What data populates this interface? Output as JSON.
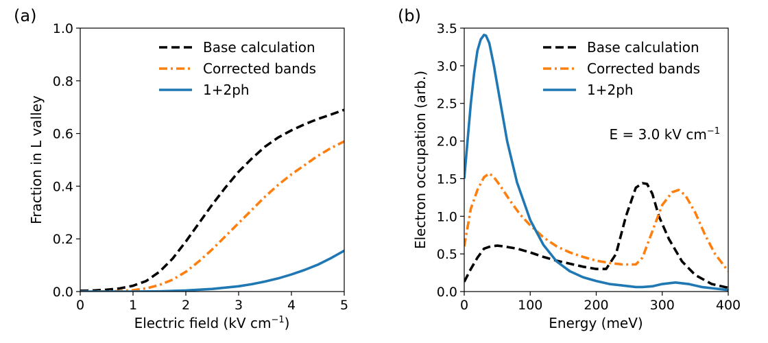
{
  "chart_data": [
    {
      "type": "line",
      "panel_label": "(a)",
      "xlabel": "Electric field (kV cm",
      "xlabel_sup": "−1",
      "xlabel_end": ")",
      "ylabel": "Fraction in L valley",
      "xlim": [
        0,
        5
      ],
      "ylim": [
        0,
        1.0
      ],
      "xticks": [
        0,
        1,
        2,
        3,
        4,
        5
      ],
      "xtick_labels": [
        "0",
        "1",
        "2",
        "3",
        "4",
        "5"
      ],
      "yticks": [
        0,
        0.2,
        0.4,
        0.6,
        0.8,
        1.0
      ],
      "ytick_labels": [
        "0.0",
        "0.2",
        "0.4",
        "0.6",
        "0.8",
        "1.0"
      ],
      "grid": false,
      "legend_position": "top-right",
      "series": [
        {
          "name": "Base calculation",
          "color": "#000000",
          "dash": "dashed",
          "x": [
            0,
            0.25,
            0.5,
            0.75,
            1.0,
            1.25,
            1.5,
            1.75,
            2.0,
            2.25,
            2.5,
            2.75,
            3.0,
            3.25,
            3.5,
            3.75,
            4.0,
            4.25,
            4.5,
            4.75,
            5.0
          ],
          "y": [
            0.003,
            0.004,
            0.007,
            0.012,
            0.022,
            0.04,
            0.075,
            0.125,
            0.19,
            0.26,
            0.33,
            0.395,
            0.455,
            0.505,
            0.55,
            0.585,
            0.612,
            0.635,
            0.655,
            0.672,
            0.69
          ]
        },
        {
          "name": "Corrected bands",
          "color": "#ff7f0e",
          "dash": "dashdot",
          "x": [
            0,
            0.25,
            0.5,
            0.75,
            1.0,
            1.25,
            1.5,
            1.75,
            2.0,
            2.25,
            2.5,
            2.75,
            3.0,
            3.25,
            3.5,
            3.75,
            4.0,
            4.25,
            4.5,
            4.75,
            5.0
          ],
          "y": [
            0.0,
            0.0,
            0.001,
            0.002,
            0.005,
            0.012,
            0.025,
            0.045,
            0.075,
            0.115,
            0.16,
            0.21,
            0.26,
            0.31,
            0.36,
            0.405,
            0.445,
            0.48,
            0.515,
            0.545,
            0.57
          ]
        },
        {
          "name": "1+2ph",
          "color": "#1f77b4",
          "dash": "solid",
          "x": [
            0,
            0.5,
            1.0,
            1.5,
            2.0,
            2.5,
            3.0,
            3.25,
            3.5,
            3.75,
            4.0,
            4.25,
            4.5,
            4.75,
            5.0
          ],
          "y": [
            0.0,
            0.0,
            0.0,
            0.001,
            0.004,
            0.01,
            0.02,
            0.028,
            0.038,
            0.05,
            0.065,
            0.082,
            0.102,
            0.127,
            0.155
          ]
        }
      ]
    },
    {
      "type": "line",
      "panel_label": "(b)",
      "xlabel": "Energy (meV)",
      "ylabel": "Electron occupation (arb.)",
      "xlim": [
        0,
        400
      ],
      "ylim": [
        0,
        3.5
      ],
      "xticks": [
        0,
        100,
        200,
        300,
        400
      ],
      "xtick_labels": [
        "0",
        "100",
        "200",
        "300",
        "400"
      ],
      "yticks": [
        0,
        0.5,
        1.0,
        1.5,
        2.0,
        2.5,
        3.0,
        3.5
      ],
      "ytick_labels": [
        "0.0",
        "0.5",
        "1.0",
        "1.5",
        "2.0",
        "2.5",
        "3.0",
        "3.5"
      ],
      "grid": false,
      "legend_position": "top-right",
      "annotation": "E = 3.0 kV cm",
      "annotation_sup": "−1",
      "series": [
        {
          "name": "Base calculation",
          "color": "#000000",
          "dash": "dashed",
          "x": [
            0,
            10,
            20,
            30,
            40,
            50,
            60,
            80,
            100,
            120,
            140,
            160,
            180,
            200,
            215,
            230,
            245,
            260,
            270,
            277,
            285,
            295,
            310,
            330,
            350,
            375,
            400
          ],
          "y": [
            0.13,
            0.3,
            0.45,
            0.57,
            0.6,
            0.61,
            0.6,
            0.57,
            0.52,
            0.46,
            0.41,
            0.37,
            0.33,
            0.3,
            0.3,
            0.5,
            1.0,
            1.38,
            1.44,
            1.43,
            1.3,
            1.0,
            0.7,
            0.4,
            0.22,
            0.1,
            0.05
          ]
        },
        {
          "name": "Corrected bands",
          "color": "#ff7f0e",
          "dash": "dashdot",
          "x": [
            0,
            5,
            10,
            20,
            30,
            38,
            45,
            55,
            70,
            85,
            100,
            120,
            140,
            160,
            180,
            200,
            220,
            240,
            260,
            270,
            285,
            300,
            315,
            325,
            335,
            350,
            365,
            380,
            400
          ],
          "y": [
            0.6,
            0.85,
            1.1,
            1.35,
            1.52,
            1.57,
            1.52,
            1.4,
            1.2,
            1.02,
            0.88,
            0.72,
            0.6,
            0.52,
            0.46,
            0.41,
            0.38,
            0.36,
            0.36,
            0.45,
            0.8,
            1.15,
            1.32,
            1.35,
            1.28,
            1.05,
            0.75,
            0.5,
            0.27
          ]
        },
        {
          "name": "1+2ph",
          "color": "#1f77b4",
          "dash": "solid",
          "x": [
            0,
            5,
            10,
            15,
            20,
            25,
            30,
            33,
            38,
            45,
            55,
            65,
            80,
            100,
            120,
            140,
            160,
            180,
            200,
            220,
            240,
            260,
            270,
            285,
            300,
            320,
            340,
            360,
            380,
            400
          ],
          "y": [
            1.5,
            2.0,
            2.5,
            2.9,
            3.2,
            3.35,
            3.41,
            3.4,
            3.3,
            3.0,
            2.5,
            2.0,
            1.45,
            0.95,
            0.62,
            0.4,
            0.27,
            0.19,
            0.14,
            0.1,
            0.08,
            0.06,
            0.06,
            0.07,
            0.1,
            0.12,
            0.1,
            0.06,
            0.04,
            0.02
          ]
        }
      ]
    }
  ]
}
